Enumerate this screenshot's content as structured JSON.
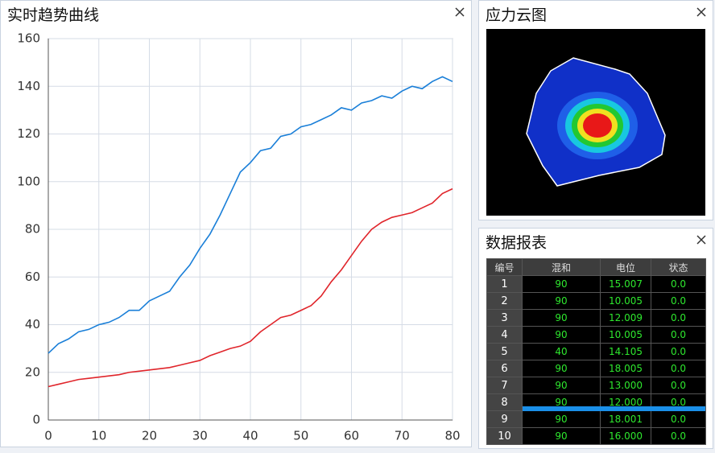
{
  "chart_data": {
    "type": "line",
    "title": "实时趋势曲线",
    "x": [
      0,
      2,
      4,
      6,
      8,
      10,
      12,
      14,
      16,
      18,
      20,
      22,
      24,
      26,
      28,
      30,
      32,
      34,
      36,
      38,
      40,
      42,
      44,
      46,
      48,
      50,
      52,
      54,
      56,
      58,
      60,
      62,
      64,
      66,
      68,
      70,
      72,
      74,
      76,
      78,
      80
    ],
    "series": [
      {
        "color": "#1a7fd8",
        "values": [
          28,
          32,
          34,
          37,
          38,
          40,
          41,
          43,
          46,
          46,
          50,
          52,
          54,
          60,
          65,
          72,
          78,
          86,
          95,
          104,
          108,
          113,
          114,
          119,
          120,
          123,
          124,
          126,
          128,
          131,
          130,
          133,
          134,
          136,
          135,
          138,
          140,
          139,
          142,
          144,
          142
        ]
      },
      {
        "color": "#e0252b",
        "values": [
          14,
          15,
          16,
          17,
          17.5,
          18,
          18.5,
          19,
          20,
          20.5,
          21,
          21.5,
          22,
          23,
          24,
          25,
          27,
          28.5,
          30,
          31,
          33,
          37,
          40,
          43,
          44,
          46,
          48,
          52,
          58,
          63,
          69,
          75,
          80,
          83,
          85,
          86,
          87,
          89,
          91,
          95,
          97
        ]
      }
    ],
    "xlim": [
      0,
      80
    ],
    "ylim": [
      0,
      160
    ],
    "xticks": [
      0,
      10,
      20,
      30,
      40,
      50,
      60,
      70,
      80
    ],
    "yticks": [
      0,
      20,
      40,
      60,
      80,
      100,
      120,
      140,
      160
    ],
    "grid": true
  },
  "contour_panel": {
    "title": "应力云图"
  },
  "table_panel": {
    "title": "数据报表",
    "columns": [
      "编号",
      "混和",
      "电位",
      "状态"
    ],
    "rows": [
      [
        "1",
        "90",
        "15.007",
        "0.0"
      ],
      [
        "2",
        "90",
        "10.005",
        "0.0"
      ],
      [
        "3",
        "90",
        "12.009",
        "0.0"
      ],
      [
        "4",
        "90",
        "10.005",
        "0.0"
      ],
      [
        "5",
        "40",
        "14.105",
        "0.0"
      ],
      [
        "6",
        "90",
        "18.005",
        "0.0"
      ],
      [
        "7",
        "90",
        "13.000",
        "0.0"
      ],
      [
        "8",
        "90",
        "12.000",
        "0.0"
      ],
      [
        "9",
        "90",
        "18.001",
        "0.0"
      ],
      [
        "10",
        "90",
        "16.000",
        "0.0"
      ]
    ]
  }
}
